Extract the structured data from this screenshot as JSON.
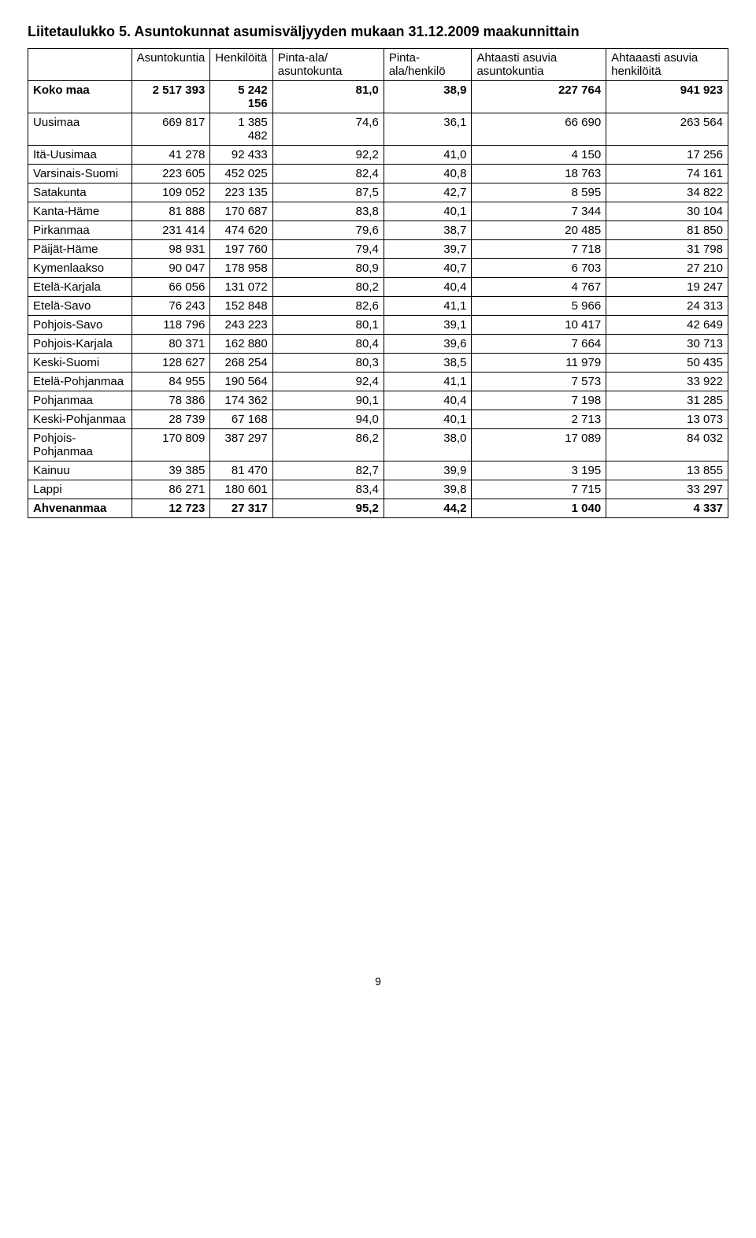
{
  "title": "Liitetaulukko 5. Asuntokunnat asumisväljyyden mukaan 31.12.2009 maakunnittain",
  "columns": [
    "",
    "Asuntokuntia",
    "Henkilöitä",
    "Pinta-ala/ asuntokunta",
    "Pinta-ala/henkilö",
    "Ahtaasti asuvia asuntokuntia",
    "Ahtaaasti asuvia henkilöitä"
  ],
  "rows": [
    {
      "bold": true,
      "label": "Koko maa",
      "cells": [
        "2 517 393",
        "5 242 156",
        "81,0",
        "38,9",
        "227 764",
        "941 923"
      ]
    },
    {
      "bold": false,
      "label": "Uusimaa",
      "cells": [
        "669 817",
        "1 385 482",
        "74,6",
        "36,1",
        "66 690",
        "263 564"
      ]
    },
    {
      "bold": false,
      "label": "Itä-Uusimaa",
      "cells": [
        "41 278",
        "92 433",
        "92,2",
        "41,0",
        "4 150",
        "17 256"
      ]
    },
    {
      "bold": false,
      "label": "Varsinais-Suomi",
      "cells": [
        "223 605",
        "452 025",
        "82,4",
        "40,8",
        "18 763",
        "74 161"
      ]
    },
    {
      "bold": false,
      "label": "Satakunta",
      "cells": [
        "109 052",
        "223 135",
        "87,5",
        "42,7",
        "8 595",
        "34 822"
      ]
    },
    {
      "bold": false,
      "label": "Kanta-Häme",
      "cells": [
        "81 888",
        "170 687",
        "83,8",
        "40,1",
        "7 344",
        "30 104"
      ]
    },
    {
      "bold": false,
      "label": "Pirkanmaa",
      "cells": [
        "231 414",
        "474 620",
        "79,6",
        "38,7",
        "20 485",
        "81 850"
      ]
    },
    {
      "bold": false,
      "label": "Päijät-Häme",
      "cells": [
        "98 931",
        "197 760",
        "79,4",
        "39,7",
        "7 718",
        "31 798"
      ]
    },
    {
      "bold": false,
      "label": "Kymenlaakso",
      "cells": [
        "90 047",
        "178 958",
        "80,9",
        "40,7",
        "6 703",
        "27 210"
      ]
    },
    {
      "bold": false,
      "label": "Etelä-Karjala",
      "cells": [
        "66 056",
        "131 072",
        "80,2",
        "40,4",
        "4 767",
        "19 247"
      ]
    },
    {
      "bold": false,
      "label": "Etelä-Savo",
      "cells": [
        "76 243",
        "152 848",
        "82,6",
        "41,1",
        "5 966",
        "24 313"
      ]
    },
    {
      "bold": false,
      "label": "Pohjois-Savo",
      "cells": [
        "118 796",
        "243 223",
        "80,1",
        "39,1",
        "10 417",
        "42 649"
      ]
    },
    {
      "bold": false,
      "label": "Pohjois-Karjala",
      "cells": [
        "80 371",
        "162 880",
        "80,4",
        "39,6",
        "7 664",
        "30 713"
      ]
    },
    {
      "bold": false,
      "label": "Keski-Suomi",
      "cells": [
        "128 627",
        "268 254",
        "80,3",
        "38,5",
        "11 979",
        "50 435"
      ]
    },
    {
      "bold": false,
      "label": "Etelä-Pohjanmaa",
      "cells": [
        "84 955",
        "190 564",
        "92,4",
        "41,1",
        "7 573",
        "33 922"
      ]
    },
    {
      "bold": false,
      "label": "Pohjanmaa",
      "cells": [
        "78 386",
        "174 362",
        "90,1",
        "40,4",
        "7 198",
        "31 285"
      ]
    },
    {
      "bold": false,
      "label": "Keski-Pohjanmaa",
      "cells": [
        "28 739",
        "67 168",
        "94,0",
        "40,1",
        "2 713",
        "13 073"
      ]
    },
    {
      "bold": false,
      "label": "Pohjois-Pohjanmaa",
      "cells": [
        "170 809",
        "387 297",
        "86,2",
        "38,0",
        "17 089",
        "84 032"
      ]
    },
    {
      "bold": false,
      "label": "Kainuu",
      "cells": [
        "39 385",
        "81 470",
        "82,7",
        "39,9",
        "3 195",
        "13 855"
      ]
    },
    {
      "bold": false,
      "label": "Lappi",
      "cells": [
        "86 271",
        "180 601",
        "83,4",
        "39,8",
        "7 715",
        "33 297"
      ]
    },
    {
      "bold": true,
      "label": "Ahvenanmaa",
      "cells": [
        "12 723",
        "27 317",
        "95,2",
        "44,2",
        "1 040",
        "4 337"
      ]
    }
  ],
  "page_number": "9",
  "style": {
    "background_color": "#ffffff",
    "text_color": "#000000",
    "border_color": "#000000",
    "title_fontsize": 18,
    "body_fontsize": 15
  }
}
